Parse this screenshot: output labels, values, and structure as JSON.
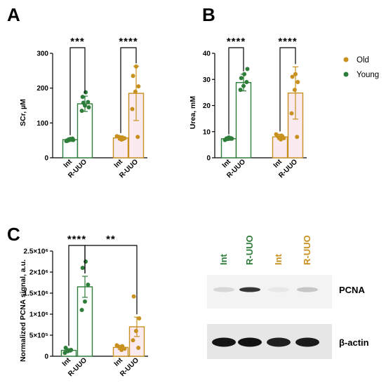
{
  "colors": {
    "young": "#2f7d3a",
    "old": "#c8911f",
    "young_fill": "#ffffff",
    "old_fill": "#fbeaf0",
    "axis": "#000000"
  },
  "legend": {
    "placement": "right",
    "items": [
      {
        "name": "Old",
        "color": "#c8911f"
      },
      {
        "name": "Young",
        "color": "#2f7d3a"
      }
    ]
  },
  "chart_data": [
    {
      "panel": "A",
      "type": "bar",
      "ylabel": "SCr, µM",
      "ylim": [
        0,
        300
      ],
      "yticks": [
        0,
        100,
        200,
        300
      ],
      "ytick_labels": [
        "0",
        "100",
        "200",
        "300"
      ],
      "groups": [
        {
          "series": "Young",
          "categories": [
            "Int",
            "R-UUO"
          ],
          "means": [
            52,
            155
          ],
          "errors": [
            5,
            22
          ],
          "points": [
            [
              48,
              52,
              55,
              50,
              54,
              51,
              49
            ],
            [
              135,
              150,
              160,
              175,
              188,
              145,
              158
            ]
          ]
        },
        {
          "series": "Old",
          "categories": [
            "Int",
            "R-UUO"
          ],
          "means": [
            57,
            185
          ],
          "errors": [
            6,
            78
          ],
          "points": [
            [
              52,
              56,
              60,
              58,
              62,
              55,
              54
            ],
            [
              60,
              140,
              190,
              205,
              235,
              262
            ]
          ]
        }
      ],
      "significance": [
        {
          "label": "***",
          "from": [
            0,
            0
          ],
          "to": [
            0,
            1
          ]
        },
        {
          "label": "****",
          "from": [
            1,
            0
          ],
          "to": [
            1,
            1
          ]
        }
      ]
    },
    {
      "panel": "B",
      "type": "bar",
      "ylabel": "Urea, mM",
      "ylim": [
        0,
        40
      ],
      "yticks": [
        0,
        10,
        20,
        30,
        40
      ],
      "ytick_labels": [
        "0",
        "10",
        "20",
        "30",
        "40"
      ],
      "groups": [
        {
          "series": "Young",
          "categories": [
            "Int",
            "R-UUO"
          ],
          "means": [
            7.3,
            28.8
          ],
          "errors": [
            0.6,
            3.2
          ],
          "points": [
            [
              6.8,
              7.2,
              7.5,
              7.0,
              7.8,
              7.3,
              7.4
            ],
            [
              26,
              27.5,
              29,
              30.5,
              32,
              34
            ]
          ]
        },
        {
          "series": "Old",
          "categories": [
            "Int",
            "R-UUO"
          ],
          "means": [
            8.0,
            24.8
          ],
          "errors": [
            1.0,
            10.0
          ],
          "points": [
            [
              7.0,
              7.5,
              8.0,
              8.5,
              9.0,
              7.8,
              8.2
            ],
            [
              8.0,
              17,
              26,
              29,
              31,
              32
            ]
          ]
        }
      ],
      "significance": [
        {
          "label": "****",
          "from": [
            0,
            0
          ],
          "to": [
            0,
            1
          ]
        },
        {
          "label": "****",
          "from": [
            1,
            0
          ],
          "to": [
            1,
            1
          ]
        }
      ]
    },
    {
      "panel": "C",
      "type": "bar",
      "ylabel": "Normalized PCNA signal, a.u.",
      "ylim": [
        0,
        2500000
      ],
      "yticks": [
        0,
        500000,
        1000000,
        1500000,
        2000000,
        2500000
      ],
      "ytick_labels": [
        "0",
        "5×10⁵",
        "1×10⁶",
        "1.5×10⁶",
        "2×10⁶",
        "2.5×10⁶"
      ],
      "groups": [
        {
          "series": "Young",
          "categories": [
            "Int",
            "R-UUO"
          ],
          "means": [
            140000,
            1650000
          ],
          "errors": [
            40000,
            250000
          ],
          "points": [
            [
              80000,
              120000,
              150000,
              200000,
              140000
            ],
            [
              1100000,
              1300000,
              1700000,
              2100000,
              2250000
            ]
          ]
        },
        {
          "series": "Old",
          "categories": [
            "Int",
            "R-UUO"
          ],
          "means": [
            210000,
            700000
          ],
          "errors": [
            50000,
            230000
          ],
          "points": [
            [
              150000,
              180000,
              220000,
              240000,
              260000
            ],
            [
              200000,
              380000,
              600000,
              900000,
              1420000
            ]
          ]
        }
      ],
      "significance": [
        {
          "label": "****",
          "from": [
            0,
            0
          ],
          "to": [
            0,
            1
          ]
        },
        {
          "label": "**",
          "from": [
            0,
            1
          ],
          "to": [
            1,
            1
          ]
        }
      ]
    }
  ],
  "blot": {
    "lanes": [
      {
        "label": "Int",
        "series": "Young",
        "color": "#2f7d3a",
        "pcna": 0.12,
        "actin": 0.95
      },
      {
        "label": "R-UUO",
        "series": "Young",
        "color": "#2f7d3a",
        "pcna": 0.85,
        "actin": 0.97
      },
      {
        "label": "Int",
        "series": "Old",
        "color": "#c8911f",
        "pcna": 0.05,
        "actin": 0.9
      },
      {
        "label": "R-UUO",
        "series": "Old",
        "color": "#c8911f",
        "pcna": 0.2,
        "actin": 0.92
      }
    ],
    "bands": [
      "PCNA",
      "β-actin"
    ]
  }
}
